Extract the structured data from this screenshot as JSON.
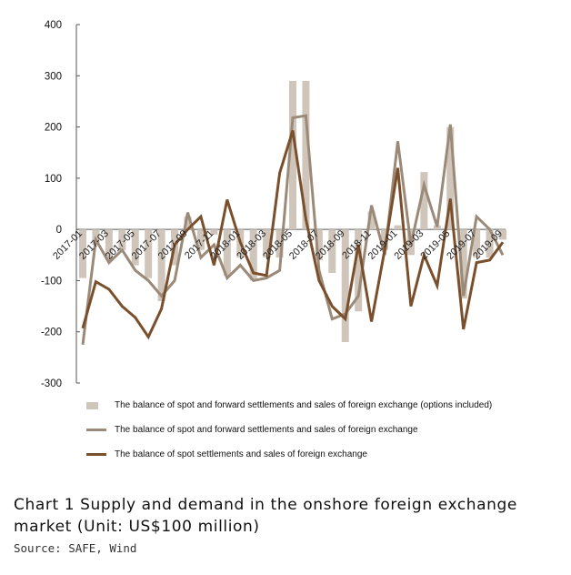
{
  "chart_data": {
    "type": "bar",
    "ylim": [
      -300,
      400
    ],
    "yticks": [
      400,
      300,
      200,
      100,
      0,
      -100,
      -200,
      -300
    ],
    "colors": {
      "bar": "#cfc5ba",
      "line_forward": "#9c8a78",
      "line_spot": "#7a4f2c",
      "axis": "#555555"
    },
    "x": [
      "2017-01",
      "2017-02",
      "2017-03",
      "2017-04",
      "2017-05",
      "2017-06",
      "2017-07",
      "2017-08",
      "2017-09",
      "2017-10",
      "2017-11",
      "2017-12",
      "2018-01",
      "2018-02",
      "2018-03",
      "2018-04",
      "2018-05",
      "2018-06",
      "2018-07",
      "2018-08",
      "2018-09",
      "2018-10",
      "2018-11",
      "2018-12",
      "2019-01",
      "2019-02",
      "2019-03",
      "2019-04",
      "2019-05",
      "2019-06",
      "2019-07",
      "2019-08",
      "2019-09"
    ],
    "x_tick_labels": [
      "2017-01",
      "2017-03",
      "2017-05",
      "2017-07",
      "2017-09",
      "2017-11",
      "2018-01",
      "2018-03",
      "2018-05",
      "2018-07",
      "2018-09",
      "2018-11",
      "2019-01",
      "2019-03",
      "2019-05",
      "2019-07",
      "2019-09"
    ],
    "series": [
      {
        "name": "The balance of spot and forward settlements and sales of foreign exchange (options included)",
        "kind": "bar",
        "values": [
          -95,
          -30,
          -60,
          -40,
          -70,
          -95,
          -140,
          -70,
          25,
          -40,
          -10,
          -90,
          -55,
          -100,
          -55,
          -55,
          290,
          290,
          -60,
          -85,
          -220,
          -160,
          35,
          -40,
          8,
          -50,
          112,
          8,
          200,
          -135,
          -55,
          -55,
          -20
        ]
      },
      {
        "name": "The balance of spot and forward settlements and sales of foreign exchange",
        "kind": "line",
        "values": [
          -225,
          -20,
          -65,
          -40,
          -80,
          -100,
          -130,
          -100,
          33,
          -55,
          -30,
          -95,
          -70,
          -100,
          -95,
          -80,
          218,
          222,
          -80,
          -175,
          -165,
          -130,
          47,
          -50,
          172,
          -30,
          87,
          5,
          205,
          -130,
          25,
          0,
          -50
        ]
      },
      {
        "name": "The balance of spot settlements and sales of foreign exchange",
        "kind": "line",
        "values": [
          -193,
          -102,
          -117,
          -150,
          -172,
          -210,
          -155,
          -30,
          0,
          25,
          -70,
          58,
          -25,
          -85,
          -90,
          110,
          193,
          20,
          -100,
          -150,
          -175,
          -30,
          -180,
          -40,
          120,
          -150,
          -50,
          -110,
          60,
          -195,
          -65,
          -60,
          -25
        ]
      }
    ]
  },
  "caption": {
    "title": "Chart 1 Supply and demand in the onshore foreign exchange market (Unit: US$100 million)",
    "source": "Source: SAFE, Wind"
  }
}
